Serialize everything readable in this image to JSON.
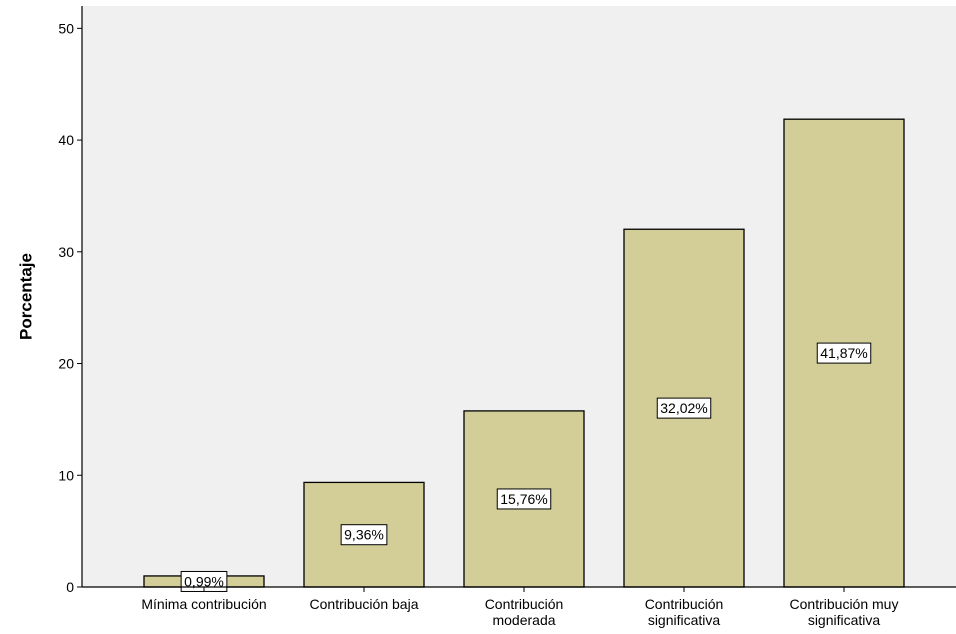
{
  "chart_data": {
    "type": "bar",
    "title": "",
    "xlabel": "",
    "ylabel": "Porcentaje",
    "ylim": [
      0,
      52
    ],
    "yticks": [
      0,
      10,
      20,
      30,
      40,
      50
    ],
    "grid": false,
    "legend": "none",
    "categories": [
      [
        "Mínima contribución"
      ],
      [
        "Contribución baja"
      ],
      [
        "Contribución",
        "moderada"
      ],
      [
        "Contribución",
        "significativa"
      ],
      [
        "Contribución muy",
        "significativa"
      ]
    ],
    "values": [
      0.99,
      9.36,
      15.76,
      32.02,
      41.87
    ],
    "data_labels": [
      "0,99%",
      "9,36%",
      "15,76%",
      "32,02%",
      "41,87%"
    ]
  },
  "colors": {
    "plot_background": "#f0f0f0",
    "bar_fill": "#d3ce97",
    "bar_stroke": "#000000",
    "label_box_fill": "#ffffff"
  }
}
